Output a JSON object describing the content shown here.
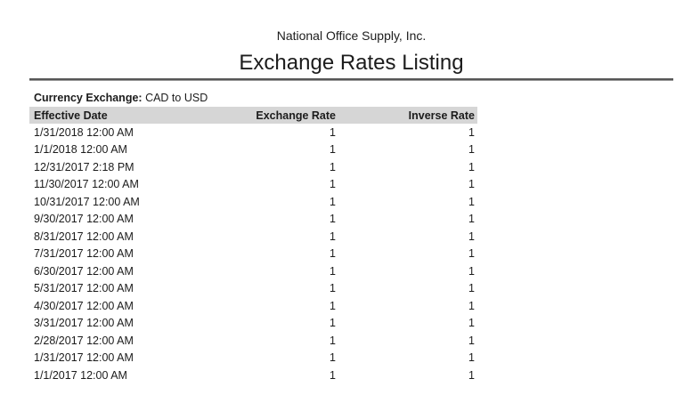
{
  "header": {
    "company_name": "National Office Supply, Inc.",
    "report_title": "Exchange Rates Listing"
  },
  "filter": {
    "label": "Currency Exchange:",
    "value": "CAD to USD"
  },
  "table": {
    "columns": [
      "Effective Date",
      "Exchange Rate",
      "Inverse Rate"
    ],
    "rows": [
      [
        "1/31/2018 12:00 AM",
        "1",
        "1"
      ],
      [
        "1/1/2018 12:00 AM",
        "1",
        "1"
      ],
      [
        "12/31/2017 2:18 PM",
        "1",
        "1"
      ],
      [
        "11/30/2017 12:00 AM",
        "1",
        "1"
      ],
      [
        "10/31/2017 12:00 AM",
        "1",
        "1"
      ],
      [
        "9/30/2017 12:00 AM",
        "1",
        "1"
      ],
      [
        "8/31/2017 12:00 AM",
        "1",
        "1"
      ],
      [
        "7/31/2017 12:00 AM",
        "1",
        "1"
      ],
      [
        "6/30/2017 12:00 AM",
        "1",
        "1"
      ],
      [
        "5/31/2017 12:00 AM",
        "1",
        "1"
      ],
      [
        "4/30/2017 12:00 AM",
        "1",
        "1"
      ],
      [
        "3/31/2017 12:00 AM",
        "1",
        "1"
      ],
      [
        "2/28/2017 12:00 AM",
        "1",
        "1"
      ],
      [
        "1/31/2017 12:00 AM",
        "1",
        "1"
      ],
      [
        "1/1/2017 12:00 AM",
        "1",
        "1"
      ]
    ]
  },
  "colors": {
    "header_row_bg": "#d6d6d6",
    "text": "#1c1c1c",
    "rule_top": "#575757",
    "rule_bottom": "#9b9b9b",
    "page_bg": "#ffffff"
  }
}
